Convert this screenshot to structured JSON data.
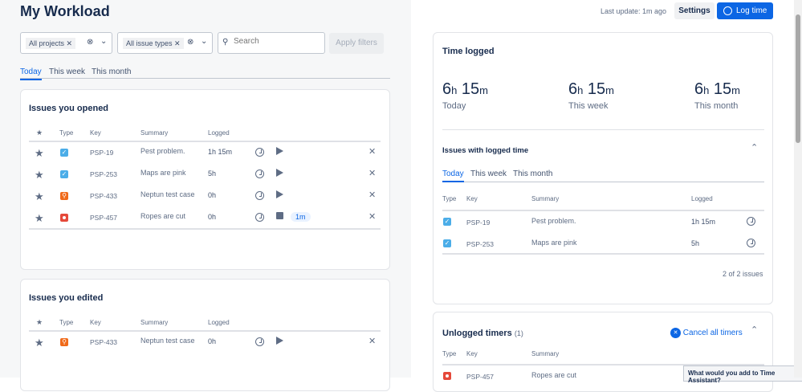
{
  "page": {
    "title": "My Workload"
  },
  "filters": {
    "projects": "All projects",
    "issue_types": "All issue types",
    "search_placeholder": "Search",
    "apply": "Apply filters"
  },
  "tabs": [
    "Today",
    "This week",
    "This month"
  ],
  "opened": {
    "title": "Issues you opened",
    "headers": [
      "Type",
      "Key",
      "Summary",
      "Logged"
    ],
    "rows": [
      {
        "type": "task",
        "key": "PSP-19",
        "summary": "Pest problem.",
        "logged": "1h 15m",
        "timer": "play"
      },
      {
        "type": "task",
        "key": "PSP-253",
        "summary": "Maps are pink",
        "logged": "5h",
        "timer": "play"
      },
      {
        "type": "test",
        "key": "PSP-433",
        "summary": "Neptun test case",
        "logged": "0h",
        "timer": "play"
      },
      {
        "type": "bug",
        "key": "PSP-457",
        "summary": "Ropes are cut",
        "logged": "0h",
        "timer": "stop",
        "running": "1m"
      }
    ]
  },
  "edited": {
    "title": "Issues you edited",
    "headers": [
      "Type",
      "Key",
      "Summary",
      "Logged"
    ],
    "rows": [
      {
        "type": "test",
        "key": "PSP-433",
        "summary": "Neptun test case",
        "logged": "0h",
        "timer": "play"
      }
    ]
  },
  "header": {
    "last_update": "Last update: 1m ago",
    "settings": "Settings",
    "log_time": "Log time"
  },
  "time_logged": {
    "title": "Time logged",
    "stats": [
      {
        "h": "6",
        "m": "15",
        "label": "Today"
      },
      {
        "h": "6",
        "m": "15",
        "label": "This week"
      },
      {
        "h": "6",
        "m": "15",
        "label": "This month"
      }
    ],
    "unit_h": "h",
    "unit_m": "m"
  },
  "logged_issues": {
    "title": "Issues with logged time",
    "tabs": [
      "Today",
      "This week",
      "This month"
    ],
    "headers": [
      "Type",
      "Key",
      "Summary",
      "Logged"
    ],
    "rows": [
      {
        "type": "task",
        "key": "PSP-19",
        "summary": "Pest problem.",
        "logged": "1h 15m"
      },
      {
        "type": "task",
        "key": "PSP-253",
        "summary": "Maps are pink",
        "logged": "5h"
      }
    ],
    "count": "2 of 2 issues"
  },
  "unlogged": {
    "title": "Unlogged timers",
    "count": "(1)",
    "cancel": "Cancel all timers",
    "headers": [
      "Type",
      "Key",
      "Summary"
    ],
    "rows": [
      {
        "type": "bug",
        "key": "PSP-457",
        "summary": "Ropes are cut"
      }
    ]
  },
  "tooltip": "What would you add to Time Assistant?",
  "colors": {
    "accent": "#0c66e4",
    "task": "#4bade8",
    "bug": "#e5493a",
    "test": "#f06a1a"
  }
}
